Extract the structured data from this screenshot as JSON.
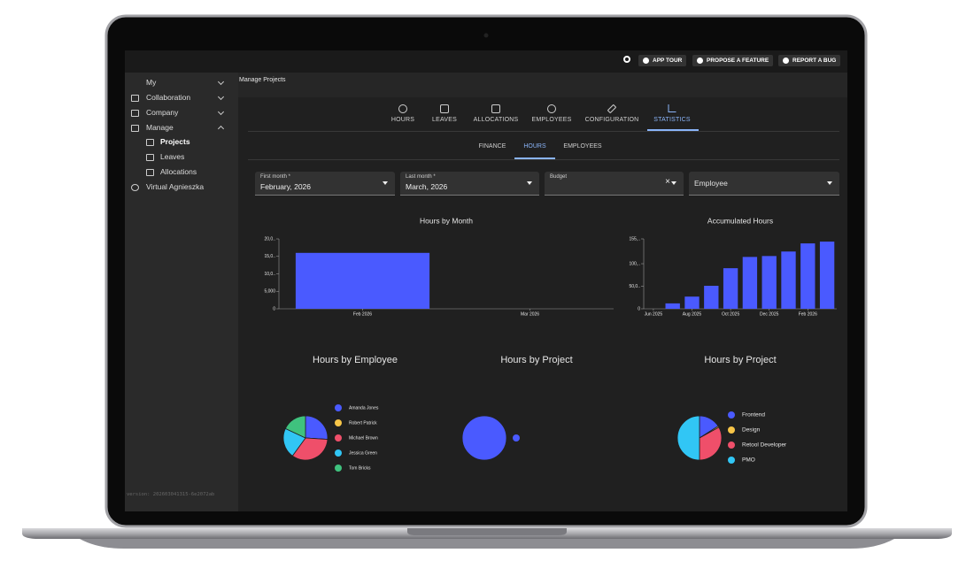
{
  "topbar": {
    "buttons": [
      "APP TOUR",
      "PROPOSE A FEATURE",
      "REPORT A BUG"
    ]
  },
  "sidebar": {
    "items": [
      "My",
      "Collaboration",
      "Company",
      "Manage",
      "Projects",
      "Leaves",
      "Allocations",
      "Virtual Agnieszka"
    ],
    "version": "version: 202603041315-6e2072ab"
  },
  "breadcrumb": "Manage Projects",
  "tabs": [
    "HOURS",
    "LEAVES",
    "ALLOCATIONS",
    "EMPLOYEES",
    "CONFIGURATION",
    "STATISTICS"
  ],
  "subtabs": [
    "FINANCE",
    "HOURS",
    "EMPLOYEES"
  ],
  "filters": [
    {
      "label": "First month *",
      "value": "February, 2026"
    },
    {
      "label": "Last month *",
      "value": "March, 2026"
    },
    {
      "label": "Budget"
    },
    {
      "label": "Employee"
    }
  ],
  "chart_data": [
    {
      "type": "bar",
      "title": "Hours by Month",
      "categories": [
        "Feb 2026",
        "Mar 2026"
      ],
      "values": [
        16,
        0
      ],
      "color": "#4a5aff",
      "ylim": [
        0,
        20
      ],
      "yticks": [
        0,
        {
          "value": 5,
          "label": "5,000"
        },
        {
          "value": 10,
          "label": "10,0.."
        },
        {
          "value": 15,
          "label": "15,0.."
        },
        {
          "value": 20,
          "label": "20,0.."
        }
      ]
    },
    {
      "type": "bar",
      "title": "Accumulated Hours",
      "categories": [
        "Jun 2025",
        null,
        "Aug 2025",
        null,
        "Oct 2025",
        null,
        "Dec 2025",
        null,
        "Feb 2026",
        null
      ],
      "values": [
        0,
        12,
        27,
        51,
        90,
        115,
        117,
        127,
        145,
        149
      ],
      "color": "#4a5aff",
      "ylim": [
        0,
        155
      ],
      "yticks": [
        0,
        {
          "value": 50,
          "label": "50,0.."
        },
        {
          "value": 100,
          "label": "100,.."
        },
        {
          "value": 155,
          "label": "155,.."
        }
      ]
    },
    {
      "type": "pie",
      "title": "Hours by Employee",
      "categories": [
        "Amanda Jones",
        "Robert Patrick",
        "Michael Brown",
        "Jessica Green",
        "Tom Bricks"
      ],
      "values": [
        26,
        0,
        34,
        22,
        18
      ],
      "colors": [
        "#4a5aff",
        "#f7c548",
        "#ef4f6a",
        "#31c6f5",
        "#3fc27e"
      ]
    },
    {
      "type": "pie",
      "title": "Hours by Project",
      "categories": [
        null
      ],
      "values": [
        100
      ],
      "colors": [
        "#4a5aff"
      ]
    },
    {
      "type": "pie",
      "title": "Hours by Project",
      "categories": [
        "Frontend",
        "Design",
        "Retool Developer",
        "PMO"
      ],
      "values": [
        16,
        1,
        33,
        50
      ],
      "colors": [
        "#4a5aff",
        "#f7c548",
        "#ef4f6a",
        "#31c6f5"
      ]
    }
  ]
}
